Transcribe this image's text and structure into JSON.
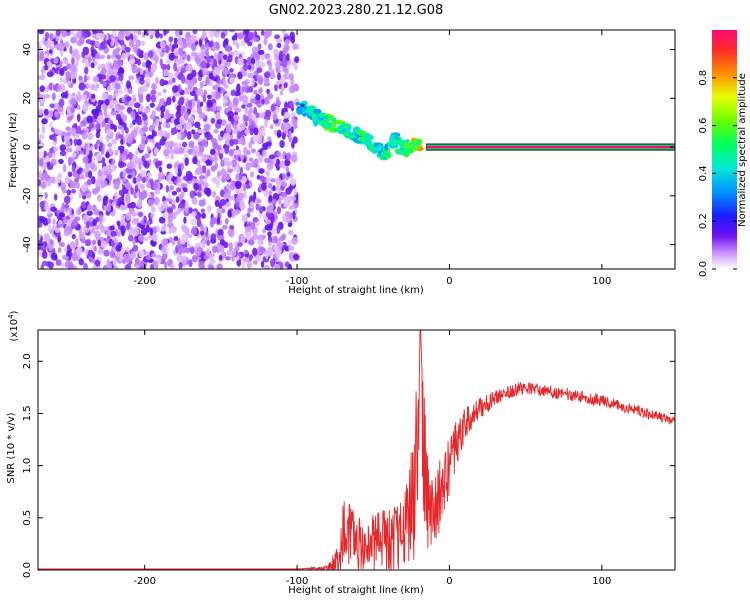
{
  "title": "GN02.2023.280.21.12.G08",
  "colorbar": {
    "label": "Normalized spectral amplitude",
    "range": [
      0,
      1
    ],
    "ticks": [
      "0.0",
      "0.2",
      "0.4",
      "0.6",
      "0.8"
    ],
    "tick_values": [
      0.0,
      0.2,
      0.4,
      0.6,
      0.8
    ]
  },
  "chart_data": [
    {
      "type": "heatmap",
      "title": "GN02.2023.280.21.12.G08",
      "xlabel": "Height of straight line (km)",
      "ylabel": "Frequency (Hz)",
      "xlim": [
        -270,
        148
      ],
      "ylim": [
        -50,
        48
      ],
      "x_ticks": [
        "-200",
        "-100",
        "0",
        "100"
      ],
      "x_tick_values": [
        -200,
        -100,
        0,
        100
      ],
      "y_ticks": [
        "40",
        "20",
        "0",
        "-20",
        "-40"
      ],
      "y_tick_values": [
        40,
        20,
        0,
        -20,
        -40
      ],
      "signal_line": {
        "frequency": 0,
        "from_x": -15,
        "to_x": 148,
        "amplitude": 1.0
      },
      "noise_region": {
        "from_x": -270,
        "to_x": -100,
        "amplitude": 0.15
      },
      "signal_trace": [
        {
          "x": -100,
          "y": 17,
          "amplitude": 0.35
        },
        {
          "x": -92,
          "y": 14,
          "amplitude": 0.45
        },
        {
          "x": -85,
          "y": 12,
          "amplitude": 0.55
        },
        {
          "x": -78,
          "y": 10,
          "amplitude": 0.6
        },
        {
          "x": -70,
          "y": 8,
          "amplitude": 0.55
        },
        {
          "x": -62,
          "y": 5,
          "amplitude": 0.5
        },
        {
          "x": -55,
          "y": 4,
          "amplitude": 0.55
        },
        {
          "x": -48,
          "y": 0,
          "amplitude": 0.5
        },
        {
          "x": -42,
          "y": -3,
          "amplitude": 0.55
        },
        {
          "x": -36,
          "y": 3,
          "amplitude": 0.45
        },
        {
          "x": -30,
          "y": -2,
          "amplitude": 0.6
        },
        {
          "x": -25,
          "y": 1,
          "amplitude": 0.7
        },
        {
          "x": -20,
          "y": 0,
          "amplitude": 0.85
        }
      ]
    },
    {
      "type": "line",
      "xlabel": "Height of straight line (km)",
      "ylabel": "SNR (10 * v/v)",
      "y_multiplier": "(x10",
      "y_multiplier_exp": "4",
      "y_multiplier_close": ")",
      "xlim": [
        -270,
        148
      ],
      "ylim": [
        0,
        2.3
      ],
      "x_ticks": [
        "-200",
        "-100",
        "0",
        "100"
      ],
      "x_tick_values": [
        -200,
        -100,
        0,
        100
      ],
      "y_ticks": [
        "0.0",
        "0.5",
        "1.0",
        "1.5",
        "2.0"
      ],
      "y_tick_values": [
        0.0,
        0.5,
        1.0,
        1.5,
        2.0
      ],
      "series": [
        {
          "name": "SNR",
          "color": "#e8262a",
          "x": [
            -270,
            -100,
            -80,
            -72,
            -68,
            -64,
            -60,
            -55,
            -50,
            -45,
            -40,
            -35,
            -30,
            -27,
            -24,
            -21,
            -19,
            -17,
            -14,
            -10,
            -5,
            0,
            5,
            10,
            20,
            30,
            40,
            50,
            60,
            70,
            80,
            90,
            100,
            110,
            120,
            130,
            140,
            148
          ],
          "y": [
            0.01,
            0.01,
            0.02,
            0.1,
            0.5,
            0.3,
            0.25,
            0.2,
            0.25,
            0.3,
            0.25,
            0.3,
            0.35,
            0.5,
            0.8,
            1.2,
            2.3,
            1.0,
            0.6,
            0.5,
            0.8,
            1.0,
            1.2,
            1.4,
            1.55,
            1.65,
            1.72,
            1.75,
            1.72,
            1.7,
            1.68,
            1.65,
            1.62,
            1.58,
            1.54,
            1.5,
            1.46,
            1.42
          ],
          "noise_amplitude": [
            0,
            0,
            0.02,
            0.2,
            0.45,
            0.3,
            0.3,
            0.28,
            0.3,
            0.3,
            0.32,
            0.35,
            0.4,
            0.5,
            0.8,
            0.9,
            0.2,
            0.8,
            0.4,
            0.35,
            0.35,
            0.3,
            0.25,
            0.15,
            0.1,
            0.08,
            0.07,
            0.06,
            0.06,
            0.06,
            0.06,
            0.06,
            0.06,
            0.05,
            0.05,
            0.05,
            0.05,
            0.04
          ]
        }
      ]
    }
  ]
}
